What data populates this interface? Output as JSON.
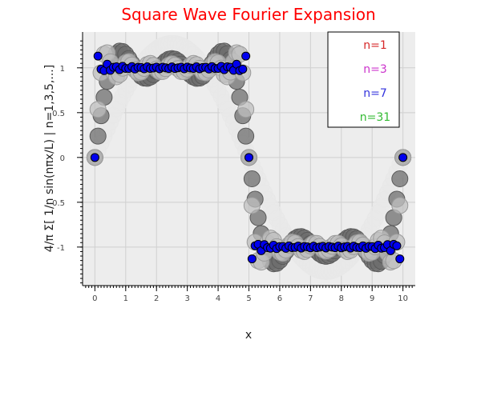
{
  "chart_data": {
    "type": "scatter",
    "title": "Square Wave Fourier Expansion",
    "title_color": "#ff0000",
    "xlabel": "x",
    "ylabel": "4/π Σ[ 1/n sin(nπx/L) | n=1,3,5,...]",
    "xlim": [
      -0.4,
      10.4
    ],
    "ylim": [
      -1.43,
      1.4
    ],
    "L": 5,
    "samples": 101,
    "x_ticks": [
      "0",
      "1",
      "2",
      "3",
      "4",
      "5",
      "6",
      "7",
      "8",
      "9",
      "10"
    ],
    "y_ticks": [
      {
        "value": 1,
        "label": "1"
      },
      {
        "value": 0.5,
        "label": "0.5"
      },
      {
        "value": 0,
        "label": "0"
      },
      {
        "value": -0.5,
        "label": "-0.5"
      },
      {
        "value": -1,
        "label": "-1"
      }
    ],
    "grid": true,
    "legend_position": "top-right",
    "series": [
      {
        "name": "n=1",
        "terms": 1,
        "color": "#e8e8e8",
        "stroke": "#e8e8e8",
        "label_color": "#d62728"
      },
      {
        "name": "n=3",
        "terms": 3,
        "color": "#6e6e6e",
        "stroke": "#5a5a5a",
        "label_color": "#cc33cc"
      },
      {
        "name": "n=7",
        "terms": 7,
        "color": "#bfbfbf",
        "stroke": "#9a9a9a",
        "label_color": "#3333dd"
      },
      {
        "name": "n=31",
        "terms": 31,
        "color": "#0000ee",
        "stroke": "#000000",
        "label_color": "#33bb33"
      }
    ]
  }
}
